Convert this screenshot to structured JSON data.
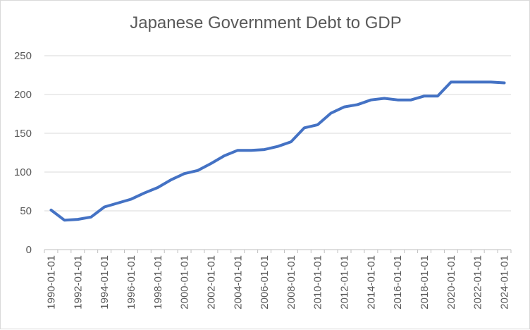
{
  "chart_data": {
    "type": "line",
    "title": "Japanese Government Debt to GDP",
    "xlabel": "",
    "ylabel": "",
    "ylim": [
      0,
      250
    ],
    "y_ticks": [
      0,
      50,
      100,
      150,
      200,
      250
    ],
    "x_tick_labels": [
      "1990-01-01",
      "1992-01-01",
      "1994-01-01",
      "1996-01-01",
      "1998-01-01",
      "2000-01-01",
      "2002-01-01",
      "2004-01-01",
      "2006-01-01",
      "2008-01-01",
      "2010-01-01",
      "2012-01-01",
      "2014-01-01",
      "2016-01-01",
      "2018-01-01",
      "2020-01-01",
      "2022-01-01",
      "2024-01-01"
    ],
    "grid": "horizontal",
    "legend": "none",
    "line_color": "#4472c4",
    "x": [
      "1990-01-01",
      "1991-01-01",
      "1992-01-01",
      "1993-01-01",
      "1994-01-01",
      "1995-01-01",
      "1996-01-01",
      "1997-01-01",
      "1998-01-01",
      "1999-01-01",
      "2000-01-01",
      "2001-01-01",
      "2002-01-01",
      "2003-01-01",
      "2004-01-01",
      "2005-01-01",
      "2006-01-01",
      "2007-01-01",
      "2008-01-01",
      "2009-01-01",
      "2010-01-01",
      "2011-01-01",
      "2012-01-01",
      "2013-01-01",
      "2014-01-01",
      "2015-01-01",
      "2016-01-01",
      "2017-01-01",
      "2018-01-01",
      "2019-01-01",
      "2020-01-01",
      "2021-01-01",
      "2022-01-01",
      "2023-01-01",
      "2024-01-01"
    ],
    "series": [
      {
        "values": [
          51,
          38,
          39,
          42,
          55,
          60,
          65,
          73,
          80,
          90,
          98,
          102,
          111,
          121,
          128,
          128,
          129,
          133,
          139,
          157,
          161,
          176,
          184,
          187,
          193,
          195,
          193,
          193,
          198,
          198,
          216,
          216,
          216,
          216,
          215
        ]
      }
    ]
  }
}
